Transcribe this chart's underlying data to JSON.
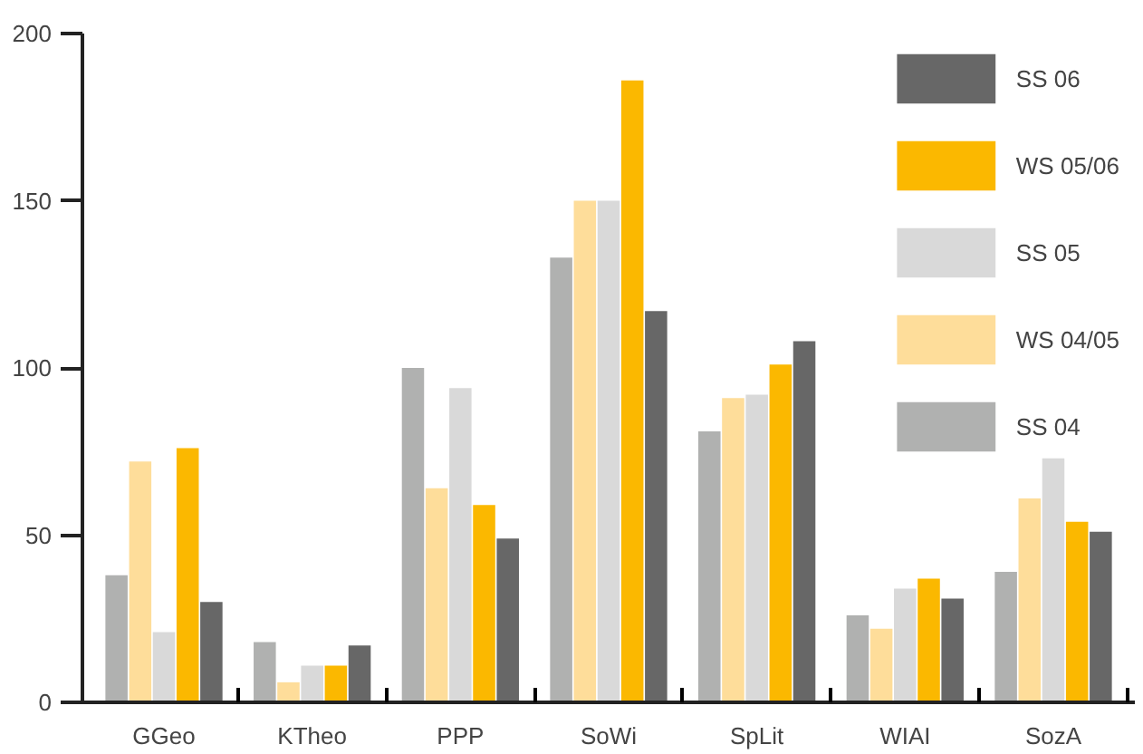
{
  "chart_data": {
    "type": "bar",
    "categories": [
      "GGeo",
      "KTheo",
      "PPP",
      "SoWi",
      "SpLit",
      "WIAI",
      "SozA"
    ],
    "series": [
      {
        "name": "SS 04",
        "color": "#b0b1b0",
        "values": [
          38,
          18,
          100,
          133,
          81,
          26,
          39
        ]
      },
      {
        "name": "WS 04/05",
        "color": "#fedd9a",
        "values": [
          72,
          6,
          64,
          150,
          91,
          22,
          61
        ]
      },
      {
        "name": "SS 05",
        "color": "#d9d9d9",
        "values": [
          21,
          11,
          94,
          150,
          92,
          34,
          73
        ]
      },
      {
        "name": "WS 05/06",
        "color": "#fbb800",
        "values": [
          76,
          11,
          59,
          186,
          101,
          37,
          54
        ]
      },
      {
        "name": "SS 06",
        "color": "#676767",
        "values": [
          30,
          17,
          49,
          117,
          108,
          31,
          51
        ]
      }
    ],
    "ylim": [
      0,
      200
    ],
    "yticks": [
      0,
      50,
      100,
      150,
      200
    ],
    "grid": false,
    "legend": "top right"
  }
}
